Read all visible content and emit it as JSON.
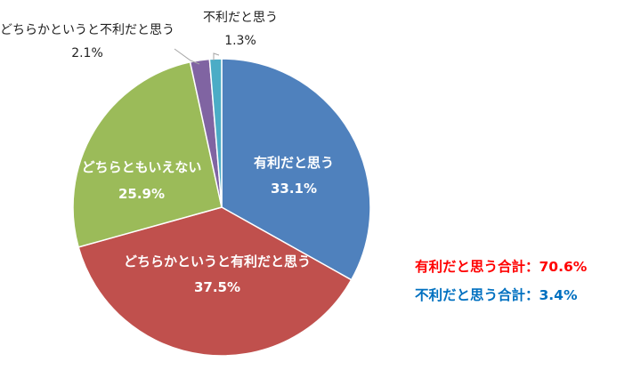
{
  "chart_data": {
    "type": "pie",
    "start_angle_deg": 0,
    "direction": "clockwise",
    "slices": [
      {
        "label": "有利だと思う",
        "value": 33.1,
        "value_label": "33.1%",
        "color": "#4f81bd",
        "label_position": "inside"
      },
      {
        "label": "どちらかというと有利だと思う",
        "value": 37.5,
        "value_label": "37.5%",
        "color": "#c0504d",
        "label_position": "inside"
      },
      {
        "label": "どちらともいえない",
        "value": 25.9,
        "value_label": "25.9%",
        "color": "#9bbb59",
        "label_position": "inside"
      },
      {
        "label": "どちらかというと不利だと思う",
        "value": 2.1,
        "value_label": "2.1%",
        "color": "#8064a2",
        "label_position": "outside"
      },
      {
        "label": "不利だと思う",
        "value": 1.3,
        "value_label": "1.3%",
        "color": "#4bacc6",
        "label_position": "outside"
      }
    ]
  },
  "summary": {
    "favorable": {
      "text": "有利だと思う合計：70.6%",
      "color": "#ff0000"
    },
    "unfavorable": {
      "text": "不利だと思う合計：3.4%",
      "color": "#0070c0"
    }
  }
}
